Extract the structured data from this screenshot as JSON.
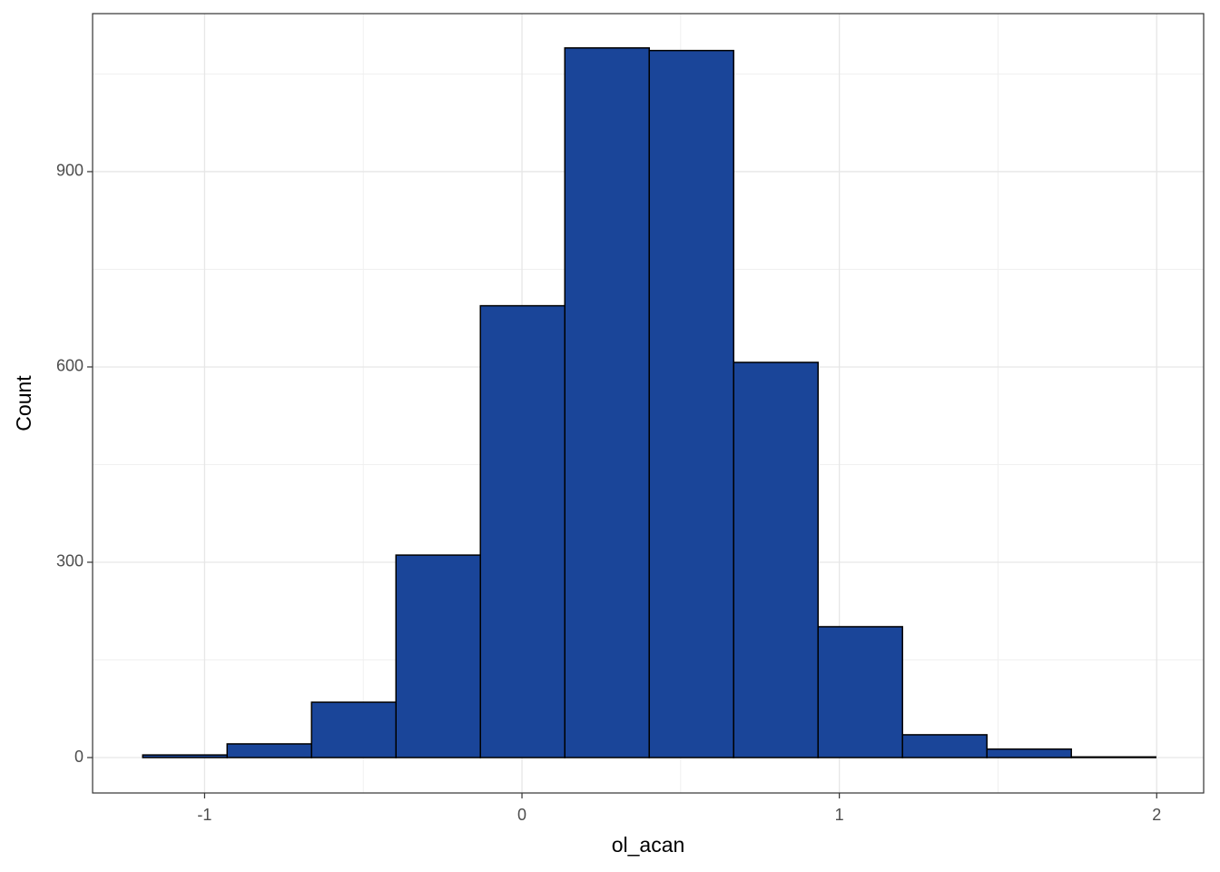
{
  "chart_data": {
    "type": "histogram",
    "x_label": "ol_acan",
    "y_label": "Count",
    "bins": [
      -1.195,
      -0.929,
      -0.663,
      -0.397,
      -0.131,
      0.135,
      0.401,
      0.667,
      0.933,
      1.199,
      1.465,
      1.731,
      1.997
    ],
    "counts": [
      4,
      21,
      85,
      311,
      694,
      1090,
      1086,
      607,
      201,
      35,
      13,
      1
    ],
    "color": "#1a4599",
    "edge_color": "#000000",
    "xlim": [
      -1.353,
      2.148
    ],
    "ylim": [
      -54.4,
      1142.7
    ],
    "xticks": [
      -1,
      0,
      1,
      2
    ],
    "yticks": [
      0,
      300,
      600,
      900
    ],
    "x_minor_grid": [
      -0.5,
      0.5,
      1.5
    ],
    "y_minor_grid": [
      150,
      450,
      750,
      1050
    ],
    "grid": true
  }
}
